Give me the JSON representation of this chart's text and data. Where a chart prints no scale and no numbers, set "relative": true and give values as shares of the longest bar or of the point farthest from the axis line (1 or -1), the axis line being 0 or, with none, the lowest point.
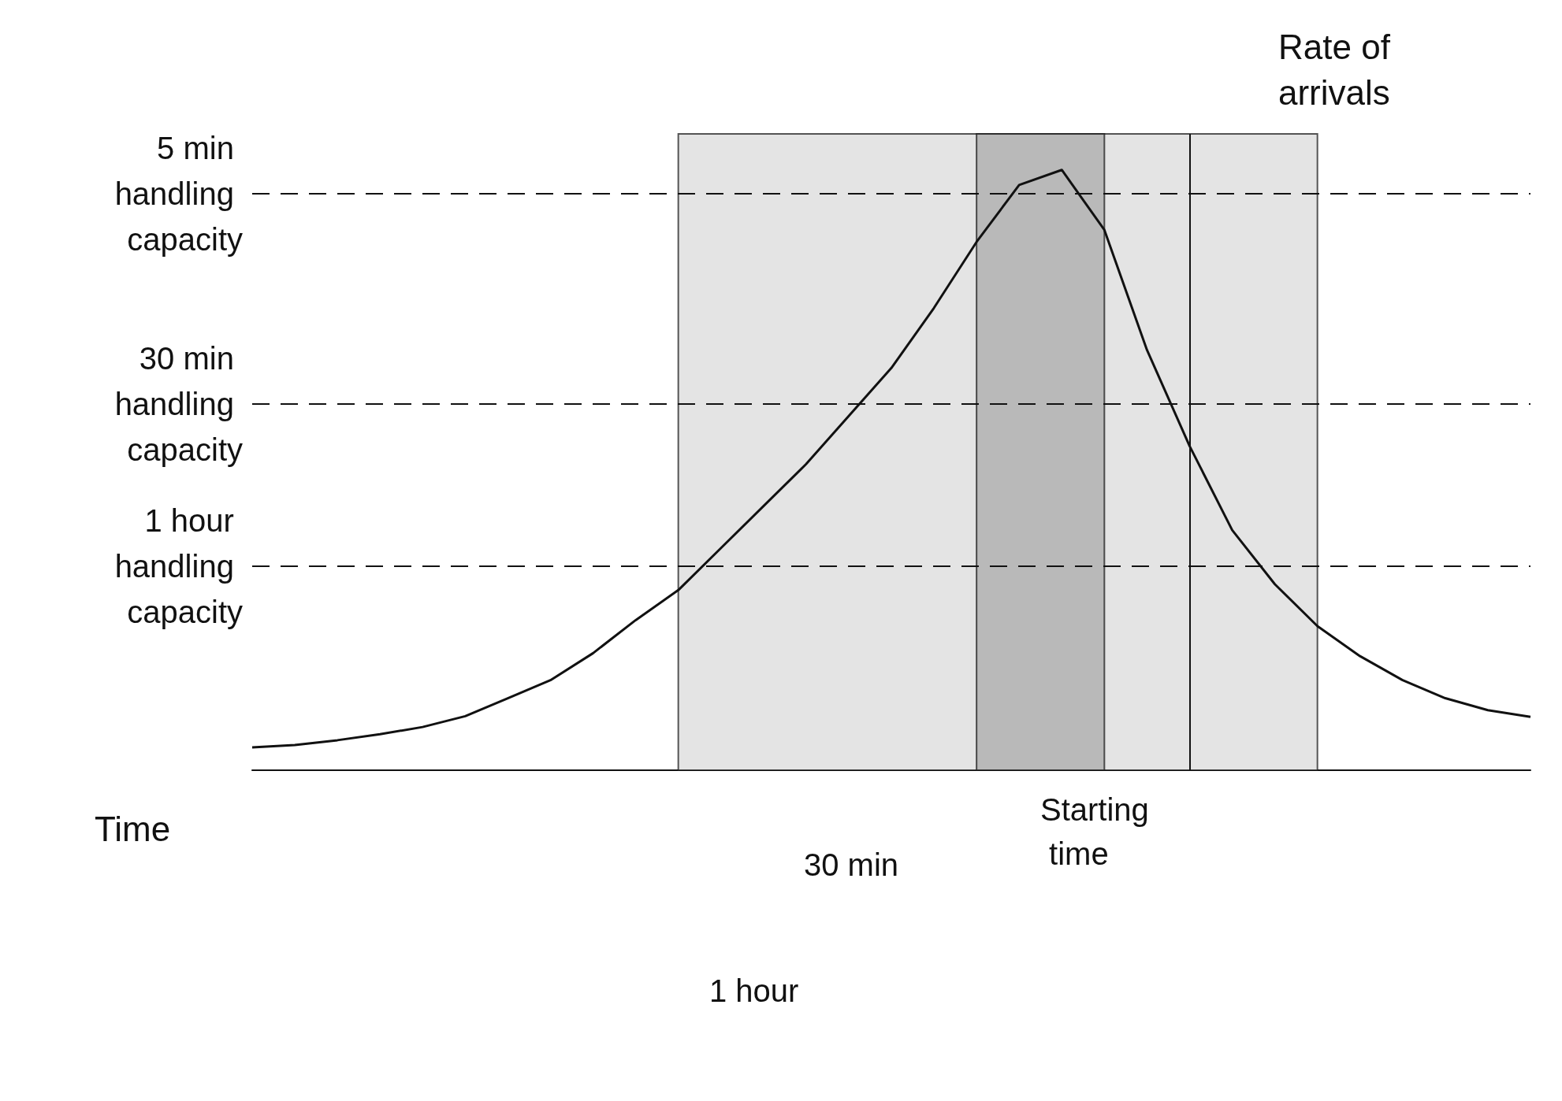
{
  "chart_data": {
    "type": "line",
    "relative": true,
    "xlabel": "Time",
    "ylabel": "Rate of arrivals",
    "marker": "none",
    "line_style": "solid",
    "categories": [
      null,
      null,
      null,
      null,
      null,
      null,
      null,
      null,
      null,
      null,
      null,
      null,
      null,
      null,
      null,
      null,
      null,
      null,
      null,
      null,
      null,
      null,
      null,
      null,
      null,
      null,
      null,
      null,
      null,
      null,
      null
    ],
    "series": [
      {
        "color": "#111111",
        "values": [
          0.038,
          0.042,
          0.05,
          0.06,
          0.072,
          0.09,
          0.12,
          0.15,
          0.195,
          0.25,
          0.3,
          0.37,
          0.44,
          0.51,
          0.59,
          0.67,
          0.77,
          0.88,
          0.975,
          1.0,
          0.9,
          0.7,
          0.54,
          0.4,
          0.31,
          0.24,
          0.19,
          0.15,
          0.12,
          0.1,
          0.089
        ]
      }
    ],
    "ref_lines": [
      {
        "axis": "y",
        "value": 0.96,
        "label": "5 min handling capacity",
        "line_style": "dashed"
      },
      {
        "axis": "y",
        "value": 0.61,
        "label": "30 min handling capacity",
        "line_style": "dashed"
      },
      {
        "axis": "y",
        "value": 0.342,
        "label": "1 hour handling capacity",
        "line_style": "dashed"
      }
    ],
    "annotations": [
      "30 min",
      "1 hour",
      "Starting time"
    ]
  }
}
